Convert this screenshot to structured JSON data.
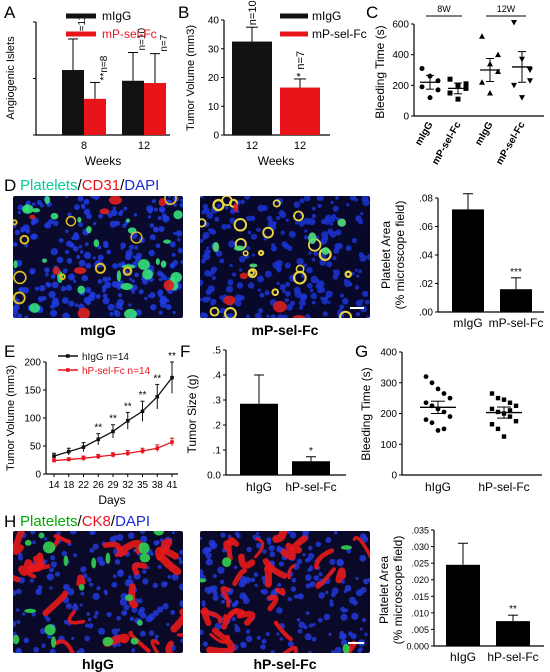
{
  "panels": {
    "A": {
      "label": "A"
    },
    "B": {
      "label": "B"
    },
    "C": {
      "label": "C"
    },
    "D": {
      "label": "D"
    },
    "E": {
      "label": "E"
    },
    "F": {
      "label": "F"
    },
    "G": {
      "label": "G"
    },
    "H": {
      "label": "H"
    }
  },
  "stain_D": {
    "part1": "Platelets",
    "sep1": "/",
    "part2": "CD31",
    "sep2": "/",
    "part3": "DAPI",
    "colors": {
      "part1": "#00cc99",
      "part2": "#e8141a",
      "part3": "#1a2ad8"
    }
  },
  "stain_H": {
    "part1": "Platelets",
    "sep1": "/",
    "part2": "CK8",
    "sep2": "/",
    "part3": "DAPI",
    "colors": {
      "part1": "#00aa00",
      "part2": "#e8141a",
      "part3": "#1a2ad8"
    }
  },
  "micrographs": {
    "D_left": {
      "caption": "mIgG"
    },
    "D_right": {
      "caption": "mP-sel-Fc"
    },
    "H_left": {
      "caption": "hIgG"
    },
    "H_right": {
      "caption": "hP-sel-Fc"
    }
  },
  "chart_data": [
    {
      "id": "A",
      "type": "bar",
      "categories": [
        "8",
        "12"
      ],
      "xlabel": "Weeks",
      "ylabel": "Angiogenic Islets",
      "ylim": [
        0,
        20
      ],
      "series": [
        {
          "name": "mIgG",
          "color": "#111111",
          "values": [
            11.5,
            9.6
          ],
          "err": [
            5.5,
            5.0
          ],
          "n": [
            "n=11",
            "n=10"
          ],
          "sig": [
            "",
            ""
          ]
        },
        {
          "name": "mP-sel-Fc",
          "color": "#e8141a",
          "values": [
            6.4,
            9.2
          ],
          "err": [
            2.9,
            5.2
          ],
          "n": [
            "n=8",
            "n=7"
          ],
          "sig": [
            "**",
            ""
          ]
        }
      ]
    },
    {
      "id": "B",
      "type": "bar",
      "categories": [
        "12",
        "12"
      ],
      "xlabel": "Weeks",
      "ylabel": "Tumor Volume (mm3)",
      "yticks": [
        "0",
        "10",
        "20",
        "30",
        "40"
      ],
      "ylim": [
        0,
        40
      ],
      "series": [
        {
          "name": "mIgG",
          "color": "#111111",
          "value": 32.5,
          "err": 5.0,
          "n": "n=10",
          "sig": ""
        },
        {
          "name": "mP-sel-Fc",
          "color": "#e8141a",
          "value": 16.5,
          "err": 3.0,
          "n": "n=7",
          "sig": "*"
        }
      ]
    },
    {
      "id": "C",
      "type": "scatter",
      "ylabel": "Bleeding Time (s)",
      "yticks": [
        "0",
        "200",
        "400",
        "600"
      ],
      "ylim": [
        0,
        600
      ],
      "brackets": [
        "8W",
        "12W"
      ],
      "categories": [
        "mIgG",
        "mP-sel-Fc",
        "mIgG",
        "mP-sel-Fc"
      ],
      "groups": [
        {
          "marker": "circle",
          "mean": 220,
          "sem": 45,
          "points": [
            310,
            260,
            230,
            190,
            120,
            170
          ]
        },
        {
          "marker": "square",
          "mean": 180,
          "sem": 35,
          "points": [
            240,
            200,
            180,
            150,
            110,
            210
          ]
        },
        {
          "marker": "triangle",
          "mean": 300,
          "sem": 75,
          "points": [
            520,
            340,
            290,
            220,
            150,
            400
          ]
        },
        {
          "marker": "triangle-down",
          "mean": 320,
          "sem": 100,
          "points": [
            610,
            370,
            300,
            200,
            120,
            230
          ]
        }
      ]
    },
    {
      "id": "D_bar",
      "type": "bar",
      "categories": [
        "mIgG",
        "mP-sel-Fc"
      ],
      "ylabel": "Platelet Area (% microscope field)",
      "yticks": [
        ".00",
        ".02",
        ".04",
        ".06",
        ".08"
      ],
      "ylim": [
        0,
        0.08
      ],
      "values": [
        0.072,
        0.016
      ],
      "err": [
        0.011,
        0.008
      ],
      "sig": [
        "",
        "***"
      ]
    },
    {
      "id": "E",
      "type": "line",
      "xlabel": "Days",
      "ylabel": "Tumor Volume (mm3)",
      "x": [
        "14",
        "18",
        "22",
        "26",
        "29",
        "32",
        "35",
        "38",
        "41"
      ],
      "yticks": [
        "0",
        "50",
        "100",
        "150",
        "200"
      ],
      "ylim": [
        0,
        200
      ],
      "sig": [
        "",
        "",
        "",
        "**",
        "**",
        "**",
        "**",
        "**",
        "**"
      ],
      "series": [
        {
          "name": "hIgG n=14",
          "color": "#111111",
          "values": [
            32,
            40,
            48,
            62,
            76,
            95,
            112,
            138,
            172
          ],
          "err": [
            5,
            6,
            8,
            10,
            12,
            15,
            18,
            22,
            28
          ]
        },
        {
          "name": "hP-sel-Fc n=14",
          "color": "#e8141a",
          "values": [
            24,
            26,
            28,
            31,
            34,
            37,
            41,
            46,
            57
          ],
          "err": [
            3,
            3,
            4,
            4,
            4,
            5,
            5,
            6,
            7
          ]
        }
      ]
    },
    {
      "id": "F",
      "type": "bar",
      "categories": [
        "hIgG",
        "hP-sel-Fc"
      ],
      "ylabel": "Tumor Size (g)",
      "yticks": [
        "0.0",
        ".1",
        ".2",
        ".3",
        ".4",
        ".5"
      ],
      "ylim": [
        0,
        0.5
      ],
      "values": [
        0.285,
        0.055
      ],
      "err": [
        0.115,
        0.018
      ],
      "sig": [
        "",
        "*"
      ]
    },
    {
      "id": "G",
      "type": "scatter",
      "ylabel": "Bleeding Time (s)",
      "categories": [
        "hIgG",
        "hP-sel-Fc"
      ],
      "yticks": [
        "0",
        "100",
        "200",
        "300",
        "400"
      ],
      "ylim": [
        0,
        400
      ],
      "groups": [
        {
          "marker": "circle",
          "mean": 220,
          "sem": 20,
          "points": [
            320,
            300,
            280,
            265,
            250,
            235,
            225,
            215,
            205,
            190,
            180,
            170,
            145,
            150
          ]
        },
        {
          "marker": "square",
          "mean": 203,
          "sem": 18,
          "points": [
            265,
            250,
            245,
            235,
            225,
            215,
            205,
            200,
            190,
            175,
            165,
            150,
            125,
            210
          ]
        }
      ]
    },
    {
      "id": "H_bar",
      "type": "bar",
      "categories": [
        "hIgG",
        "hP-sel-Fc"
      ],
      "ylabel": "Platelet Area (% microscope field)",
      "yticks": [
        "0.000",
        ".005",
        ".010",
        ".015",
        ".020",
        ".025",
        ".030",
        ".035"
      ],
      "ylim": [
        0,
        0.035
      ],
      "values": [
        0.0245,
        0.0075
      ],
      "err": [
        0.0065,
        0.0018
      ],
      "sig": [
        "",
        "**"
      ]
    }
  ]
}
